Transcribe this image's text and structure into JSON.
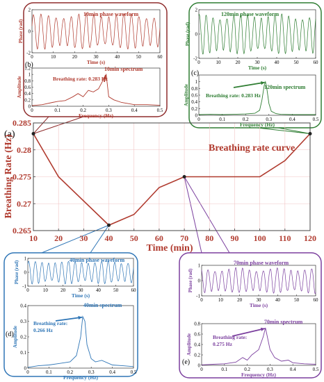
{
  "main": {
    "panel_label": "(a)",
    "ylabel": "Breathing Rate (Hz)",
    "xlabel": "Time (min)",
    "legend": "Breathing rate curve",
    "color": "#b03a2e"
  },
  "insets": {
    "10": {
      "color": "#b03a2e",
      "wave_title": "10min phase waveform",
      "spec_title": "10min spectrum",
      "panel_label": "(b)",
      "annotation": "Breathing rate: 0.283 Hz",
      "wave_ylabel": "Phase (rad)",
      "wave_xlabel": "Time (s)",
      "spec_ylabel": "Amplitude",
      "spec_xlabel": "Frequency (Hz)"
    },
    "120": {
      "color": "#2e7d32",
      "wave_title": "120min phase waveform",
      "spec_title": "120min spectrum",
      "panel_label": "(c)",
      "annotation": "Breathing rate: 0.283 Hz",
      "wave_ylabel": "Phase (rad)",
      "wave_xlabel": "Time (s)",
      "spec_ylabel": "Amplitude",
      "spec_xlabel": "Frequency (Hz)"
    },
    "40": {
      "color": "#2e75b6",
      "wave_title": "40min phase waveform",
      "spec_title": "40min spectrum",
      "panel_label": "(d)",
      "annotation_line1": "Breathing rate:",
      "annotation_line2": "0.266 Hz",
      "wave_ylabel": "Phase (rad)",
      "wave_xlabel": "Time (s)",
      "spec_ylabel": "Amplitude",
      "spec_xlabel": "Frequency (Hz)"
    },
    "70": {
      "color": "#7b3f9e",
      "wave_title": "70min phase waveform",
      "spec_title": "70min spectrum",
      "panel_label": "(e)",
      "annotation_line1": "Breathing rate:",
      "annotation_line2": "0.275 Hz",
      "wave_ylabel": "Phase (rad)",
      "wave_xlabel": "Time (s)",
      "spec_ylabel": "Amplitude",
      "spec_xlabel": "Frequency (Hz)"
    }
  },
  "chart_data": [
    {
      "type": "line",
      "name": "main",
      "xlabel": "Time (min)",
      "ylabel": "Breathing Rate (Hz)",
      "x": [
        10,
        20,
        40,
        50,
        60,
        70,
        100,
        110,
        120
      ],
      "y": [
        0.283,
        0.275,
        0.266,
        0.268,
        0.273,
        0.275,
        0.275,
        0.278,
        0.283
      ],
      "xlim": [
        10,
        120
      ],
      "ylim": [
        0.265,
        0.285
      ],
      "xticks": [
        10,
        20,
        30,
        40,
        50,
        60,
        70,
        80,
        90,
        100,
        110,
        120
      ],
      "yticks": [
        0.265,
        0.27,
        0.275,
        0.28,
        0.285
      ],
      "grid": true
    },
    {
      "type": "line",
      "name": "10min waveform",
      "xlim": [
        0,
        60
      ],
      "ylim": [
        -2,
        2
      ],
      "xticks": [
        0,
        10,
        20,
        30,
        40,
        50,
        60
      ],
      "yticks": [
        -2,
        0,
        2
      ],
      "breathing_rate_hz": 0.283
    },
    {
      "type": "line",
      "name": "10min spectrum",
      "x": [
        0,
        0.04,
        0.08,
        0.1,
        0.13,
        0.16,
        0.18,
        0.2,
        0.22,
        0.24,
        0.26,
        0.28,
        0.29,
        0.3,
        0.32,
        0.35,
        0.4,
        0.45,
        0.5
      ],
      "y": [
        0.02,
        0.05,
        0.12,
        0.15,
        0.18,
        0.3,
        0.4,
        0.3,
        0.5,
        0.45,
        0.55,
        0.85,
        1.0,
        0.3,
        0.2,
        0.12,
        0.05,
        0.05,
        0.03
      ],
      "xlim": [
        0,
        0.5
      ],
      "ylim": [
        0,
        1.2
      ],
      "xticks": [
        0,
        0.1,
        0.2,
        0.3,
        0.4,
        0.5
      ],
      "yticks": [
        0,
        0.2,
        0.4,
        0.6,
        0.8,
        1,
        1.2
      ]
    },
    {
      "type": "line",
      "name": "120min waveform",
      "xlim": [
        0,
        60
      ],
      "ylim": [
        -2,
        2
      ],
      "xticks": [
        0,
        10,
        20,
        30,
        40,
        50,
        60
      ],
      "yticks": [
        -2,
        0,
        2
      ],
      "breathing_rate_hz": 0.283
    },
    {
      "type": "line",
      "name": "120min spectrum",
      "x": [
        0,
        0.05,
        0.1,
        0.15,
        0.2,
        0.24,
        0.26,
        0.27,
        0.28,
        0.285,
        0.29,
        0.3,
        0.31,
        0.33,
        0.35,
        0.4,
        0.45,
        0.5
      ],
      "y": [
        0.02,
        0.03,
        0.02,
        0.03,
        0.04,
        0.06,
        0.15,
        0.45,
        0.9,
        1.0,
        0.85,
        0.35,
        0.12,
        0.05,
        0.03,
        0.02,
        0.02,
        0.02
      ],
      "xlim": [
        0,
        0.5
      ],
      "ylim": [
        0,
        1.2
      ],
      "xticks": [
        0,
        0.1,
        0.2,
        0.3,
        0.4,
        0.5
      ],
      "yticks": [
        0,
        0.2,
        0.4,
        0.6,
        0.8,
        1
      ]
    },
    {
      "type": "line",
      "name": "40min waveform",
      "xlim": [
        0,
        60
      ],
      "ylim": [
        -1,
        1
      ],
      "xticks": [
        0,
        10,
        20,
        30,
        40,
        50,
        60
      ],
      "yticks": [
        -1,
        0,
        1
      ],
      "breathing_rate_hz": 0.266
    },
    {
      "type": "line",
      "name": "40min spectrum",
      "x": [
        0,
        0.05,
        0.1,
        0.15,
        0.2,
        0.23,
        0.25,
        0.26,
        0.27,
        0.28,
        0.3,
        0.32,
        0.35,
        0.4,
        0.45,
        0.5
      ],
      "y": [
        0.005,
        0.015,
        0.02,
        0.03,
        0.04,
        0.08,
        0.2,
        0.33,
        0.3,
        0.15,
        0.06,
        0.04,
        0.05,
        0.02,
        0.015,
        0.01
      ],
      "xlim": [
        0,
        0.5
      ],
      "ylim": [
        0,
        0.4
      ],
      "xticks": [
        0,
        0.1,
        0.2,
        0.3,
        0.4,
        0.5
      ],
      "yticks": [
        0,
        0.1,
        0.2,
        0.3,
        0.4
      ]
    },
    {
      "type": "line",
      "name": "70min waveform",
      "xlim": [
        0,
        60
      ],
      "ylim": [
        -1,
        1
      ],
      "xticks": [
        0,
        10,
        20,
        30,
        40,
        50,
        60
      ],
      "yticks": [
        -1,
        0,
        1
      ],
      "breathing_rate_hz": 0.275
    },
    {
      "type": "line",
      "name": "70min spectrum",
      "x": [
        0,
        0.05,
        0.1,
        0.15,
        0.18,
        0.2,
        0.22,
        0.25,
        0.27,
        0.28,
        0.3,
        0.32,
        0.35,
        0.38,
        0.4,
        0.45,
        0.5
      ],
      "y": [
        0.01,
        0.02,
        0.03,
        0.06,
        0.15,
        0.1,
        0.2,
        0.3,
        0.55,
        0.72,
        0.3,
        0.15,
        0.08,
        0.1,
        0.05,
        0.03,
        0.02
      ],
      "xlim": [
        0,
        0.5
      ],
      "ylim": [
        0,
        0.8
      ],
      "xticks": [
        0,
        0.1,
        0.2,
        0.3,
        0.4,
        0.5
      ],
      "yticks": [
        0,
        0.2,
        0.4,
        0.6,
        0.8
      ]
    }
  ]
}
